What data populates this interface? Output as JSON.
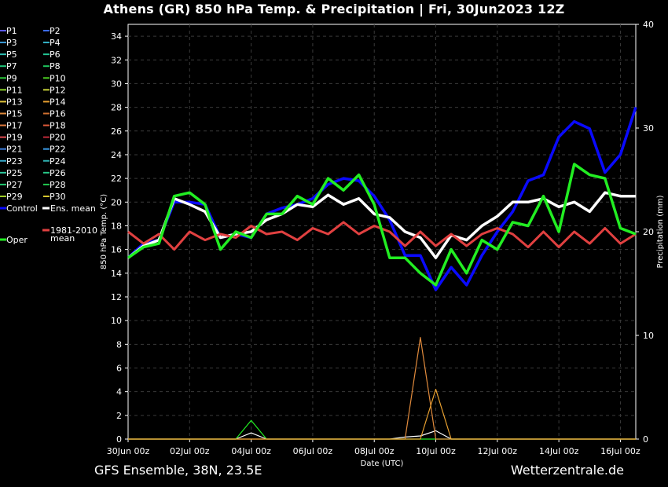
{
  "title": "Athens  (GR)  850 hPa Temp. & Precipitation | Fri, 30Jun2023 12Z",
  "footer": {
    "left": "GFS Ensemble, 38N, 23.5E",
    "right": "Wetterzentrale.de"
  },
  "chart_data": {
    "type": "line",
    "xlabel": "Date (UTC)",
    "ylabel_left": "850 hPa Temp. (°C)",
    "ylabel_right": "Precipitation (mm)",
    "ylim_left": [
      0,
      35
    ],
    "ylim_right": [
      0,
      40
    ],
    "xlim_hours": [
      0,
      396
    ],
    "yticks_left": [
      0,
      2,
      4,
      6,
      8,
      10,
      12,
      14,
      16,
      18,
      20,
      22,
      24,
      26,
      28,
      30,
      32,
      34
    ],
    "yticks_right": [
      0,
      10,
      20,
      30,
      40
    ],
    "xticks": [
      "30Jun 00z",
      "02Jul 00z",
      "04Jul 00z",
      "06Jul 00z",
      "08Jul 00z",
      "10Jul 00z",
      "12Jul 00z",
      "14Jul 00z",
      "16Jul 00z"
    ],
    "grid": true,
    "legend_position": "left",
    "legend": [
      {
        "name": "P1",
        "color": "#5a5aff"
      },
      {
        "name": "P2",
        "color": "#3c6cff"
      },
      {
        "name": "P3",
        "color": "#3a9ad6"
      },
      {
        "name": "P4",
        "color": "#35b4c8"
      },
      {
        "name": "P5",
        "color": "#2ec0b4"
      },
      {
        "name": "P6",
        "color": "#23c695"
      },
      {
        "name": "P7",
        "color": "#1ec77a"
      },
      {
        "name": "P8",
        "color": "#1ec65e"
      },
      {
        "name": "P9",
        "color": "#2bc83a"
      },
      {
        "name": "P10",
        "color": "#4ccc22"
      },
      {
        "name": "P11",
        "color": "#8cd22a"
      },
      {
        "name": "P12",
        "color": "#c8d23a"
      },
      {
        "name": "P13",
        "color": "#e2c43a"
      },
      {
        "name": "P14",
        "color": "#e8a030"
      },
      {
        "name": "P15",
        "color": "#e08a3c"
      },
      {
        "name": "P16",
        "color": "#d07030"
      },
      {
        "name": "P17",
        "color": "#e07a3e"
      },
      {
        "name": "P18",
        "color": "#e05a3a"
      },
      {
        "name": "P19",
        "color": "#e04a50"
      },
      {
        "name": "P20",
        "color": "#c02a3a"
      },
      {
        "name": "P21",
        "color": "#3a7ad6"
      },
      {
        "name": "P22",
        "color": "#3a9ae6"
      },
      {
        "name": "P23",
        "color": "#36a8c8"
      },
      {
        "name": "P24",
        "color": "#30b0b0"
      },
      {
        "name": "P25",
        "color": "#2ec89e"
      },
      {
        "name": "P26",
        "color": "#28c888"
      },
      {
        "name": "P27",
        "color": "#22c870"
      },
      {
        "name": "P28",
        "color": "#22c850"
      },
      {
        "name": "P29",
        "color": "#a0d028"
      },
      {
        "name": "P30",
        "color": "#d8c830"
      },
      {
        "name": "Control",
        "color": "#0a0aff"
      },
      {
        "name": "Ens. mean",
        "color": "#ffffff"
      },
      {
        "name": "1981-2010 mean",
        "color": "#e04040"
      },
      {
        "name": "Oper",
        "color": "#22ee22"
      }
    ],
    "series": [
      {
        "name": "Control",
        "color": "#0a0aff",
        "x": [
          0,
          12,
          24,
          36,
          48,
          60,
          72,
          84,
          96,
          108,
          120,
          132,
          144,
          156,
          168,
          180,
          192,
          204,
          216,
          228,
          240,
          252,
          264,
          276,
          288,
          300,
          312,
          324,
          336,
          348,
          360,
          372,
          384,
          396
        ],
        "values": [
          15.3,
          16.5,
          16.8,
          20.0,
          20.0,
          19.8,
          17.0,
          17.3,
          17.0,
          19.0,
          19.5,
          19.8,
          20.3,
          21.5,
          22.0,
          21.8,
          20.5,
          18.5,
          15.5,
          15.5,
          12.6,
          14.5,
          13.0,
          15.5,
          17.5,
          19.2,
          21.8,
          22.3,
          25.5,
          26.8,
          26.2,
          22.5,
          24.0,
          28.0
        ]
      },
      {
        "name": "Ens. mean",
        "color": "#ffffff",
        "x": [
          0,
          12,
          24,
          36,
          48,
          60,
          72,
          84,
          96,
          108,
          120,
          132,
          144,
          156,
          168,
          180,
          192,
          204,
          216,
          228,
          240,
          252,
          264,
          276,
          288,
          300,
          312,
          324,
          336,
          348,
          360,
          372,
          384,
          396
        ],
        "values": [
          15.3,
          16.3,
          16.8,
          20.3,
          19.8,
          19.2,
          17.0,
          17.3,
          17.5,
          18.5,
          19.0,
          19.8,
          19.6,
          20.6,
          19.8,
          20.3,
          19.0,
          18.7,
          17.5,
          17.0,
          15.3,
          17.2,
          16.8,
          18.0,
          18.8,
          20.0,
          20.0,
          20.3,
          19.6,
          20.0,
          19.2,
          20.8,
          20.5,
          20.5
        ]
      },
      {
        "name": "1981-2010 mean",
        "color": "#e04040",
        "x": [
          0,
          12,
          24,
          36,
          48,
          60,
          72,
          84,
          96,
          108,
          120,
          132,
          144,
          156,
          168,
          180,
          192,
          204,
          216,
          228,
          240,
          252,
          264,
          276,
          288,
          300,
          312,
          324,
          336,
          348,
          360,
          372,
          384,
          396
        ],
        "values": [
          17.5,
          16.5,
          17.3,
          16.0,
          17.5,
          16.8,
          17.3,
          17.0,
          18.0,
          17.3,
          17.5,
          16.8,
          17.8,
          17.3,
          18.3,
          17.3,
          18.0,
          17.5,
          16.3,
          17.5,
          16.3,
          17.3,
          16.3,
          17.3,
          17.8,
          17.3,
          16.2,
          17.5,
          16.2,
          17.5,
          16.5,
          17.8,
          16.5,
          17.3
        ]
      },
      {
        "name": "Oper",
        "color": "#22ee22",
        "x": [
          0,
          12,
          24,
          36,
          48,
          60,
          72,
          84,
          96,
          108,
          120,
          132,
          144,
          156,
          168,
          180,
          192,
          204,
          216,
          228,
          240,
          252,
          264,
          276,
          288,
          300,
          312,
          324,
          336,
          348,
          360,
          372,
          384,
          396
        ],
        "values": [
          15.3,
          16.2,
          16.5,
          20.5,
          20.8,
          19.8,
          16.0,
          17.5,
          17.0,
          19.0,
          19.0,
          20.5,
          19.8,
          22.0,
          21.0,
          22.3,
          19.8,
          15.3,
          15.3,
          14.0,
          13.0,
          16.0,
          14.0,
          16.8,
          16.0,
          18.3,
          18.0,
          20.5,
          17.5,
          23.2,
          22.3,
          22.0,
          17.8,
          17.3
        ]
      }
    ],
    "precipitation": [
      {
        "name": "Ens. mean",
        "color": "#ffffff",
        "x": [
          0,
          84,
          96,
          108,
          204,
          216,
          228,
          240,
          252,
          396
        ],
        "values": [
          0,
          0,
          0.6,
          0,
          0,
          0.2,
          0.3,
          0.8,
          0,
          0
        ]
      },
      {
        "name": "Oper",
        "color": "#22ee22",
        "x": [
          0,
          84,
          96,
          108,
          396
        ],
        "values": [
          0,
          0,
          1.8,
          0,
          0
        ]
      },
      {
        "name": "P15",
        "color": "#e08a3c",
        "x": [
          0,
          216,
          228,
          240,
          252,
          396
        ],
        "values": [
          0,
          0,
          9.8,
          0,
          0,
          0
        ]
      },
      {
        "name": "P14",
        "color": "#e8a030",
        "x": [
          0,
          228,
          240,
          252,
          396
        ],
        "values": [
          0,
          0,
          4.8,
          0,
          0
        ]
      }
    ]
  }
}
